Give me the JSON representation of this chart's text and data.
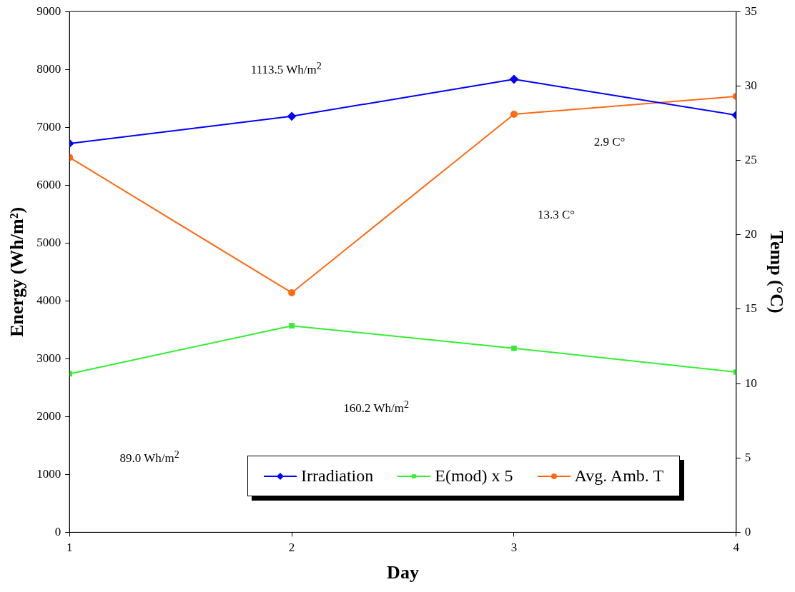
{
  "chart_data": {
    "type": "line",
    "xlabel": "Day",
    "ylabel": "Energy (Wh/m²)",
    "y2label": "Temp (°C)",
    "x": [
      1,
      2,
      3,
      4
    ],
    "series": [
      {
        "name": "Irradiation",
        "color": "#0000ff",
        "marker": "diamond",
        "values": [
          6720,
          7190,
          7830,
          7210
        ]
      },
      {
        "name": "E(mod) x 5",
        "color": "#33ee33",
        "marker": "square",
        "values": [
          2740,
          3570,
          3180,
          2770
        ]
      },
      {
        "name": "Avg. Amb. T",
        "color": "#ff6a13",
        "marker": "circle",
        "axis": "y2",
        "values": [
          25.2,
          16.1,
          28.1,
          29.3
        ]
      }
    ],
    "xlim": [
      1,
      4
    ],
    "xticks": [
      1,
      2,
      3,
      4
    ],
    "ylim": [
      0,
      9000
    ],
    "yticks": [
      0,
      1000,
      2000,
      3000,
      4000,
      5000,
      6000,
      7000,
      8000,
      9000
    ],
    "y2lim": [
      0,
      35
    ],
    "y2ticks": [
      0,
      5,
      10,
      15,
      20,
      25,
      30,
      35
    ],
    "grid": false,
    "legend": "bottom",
    "annotations": [
      "1113.5 Wh/m$^{2}$",
      "2.9 C°",
      "13.3 C°",
      "160.2 Wh/m$^{2}$",
      "89.0 Wh/m$^{2}$"
    ]
  }
}
